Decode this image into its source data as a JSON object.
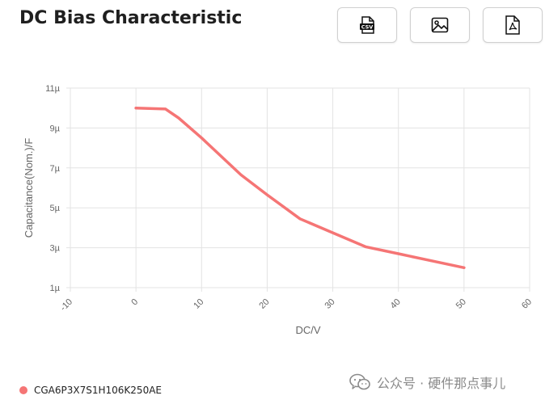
{
  "header": {
    "title": "DC Bias Characteristic",
    "csv_label": "CSV"
  },
  "chart_data": {
    "type": "line",
    "xlabel": "DC/V",
    "ylabel": "Capacitance(Nom.)/F",
    "xlim": [
      -10,
      60
    ],
    "ylim": [
      1e-06,
      1.1e-05
    ],
    "x_ticks": [
      "-10",
      "0",
      "10",
      "20",
      "30",
      "40",
      "50",
      "60"
    ],
    "y_ticks": [
      "1µ",
      "3µ",
      "5µ",
      "7µ",
      "9µ",
      "11µ"
    ],
    "grid": true,
    "series": [
      {
        "name": "CGA6P3X7S1H106K250AE",
        "color": "#f57575",
        "x": [
          0,
          4.5,
          6.5,
          10,
          16,
          20,
          25,
          30,
          35,
          40,
          45,
          50
        ],
        "y": [
          1e-05,
          9.95e-06,
          9.5e-06,
          8.5e-06,
          6.65e-06,
          5.65e-06,
          4.45e-06,
          3.75e-06,
          3.05e-06,
          2.7e-06,
          2.35e-06,
          2e-06
        ]
      }
    ]
  },
  "legend": {
    "label": "CGA6P3X7S1H106K250AE",
    "color": "#f57575"
  },
  "watermark": {
    "text": "公众号 · 硬件那点事儿"
  }
}
